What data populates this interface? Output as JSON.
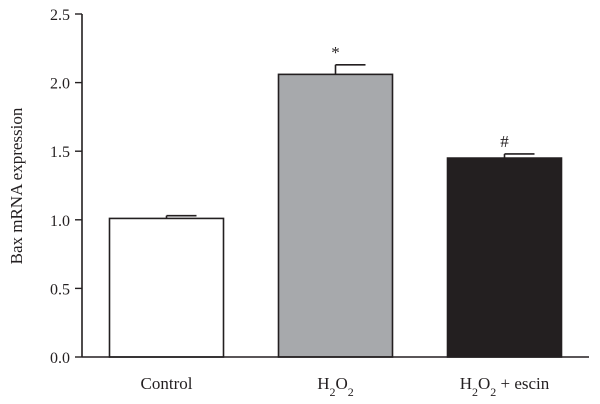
{
  "chart_data": {
    "type": "bar",
    "ylabel": "Bax mRNA expression",
    "ylim": [
      0,
      2.5
    ],
    "yticks": [
      "0.0",
      "0.5",
      "1.0",
      "1.5",
      "2.0",
      "2.5"
    ],
    "categories": [
      {
        "main": "Control",
        "parts": [
          {
            "t": "Control",
            "sub": false
          }
        ]
      },
      {
        "main": "H2O2",
        "parts": [
          {
            "t": "H",
            "sub": false
          },
          {
            "t": "2",
            "sub": true
          },
          {
            "t": "O",
            "sub": false
          },
          {
            "t": "2",
            "sub": true
          }
        ]
      },
      {
        "main": "H2O2 + escin",
        "parts": [
          {
            "t": "H",
            "sub": false
          },
          {
            "t": "2",
            "sub": true
          },
          {
            "t": "O",
            "sub": false
          },
          {
            "t": "2",
            "sub": true
          },
          {
            "t": " + escin",
            "sub": false
          }
        ]
      }
    ],
    "values": [
      1.01,
      2.06,
      1.45
    ],
    "errors": [
      0.02,
      0.07,
      0.03
    ],
    "annotations": [
      "",
      "*",
      "#"
    ],
    "bar_colors": [
      "#ffffff",
      "#a7a9ac",
      "#231f20"
    ],
    "axis_color": "#231f20",
    "grid": false
  }
}
